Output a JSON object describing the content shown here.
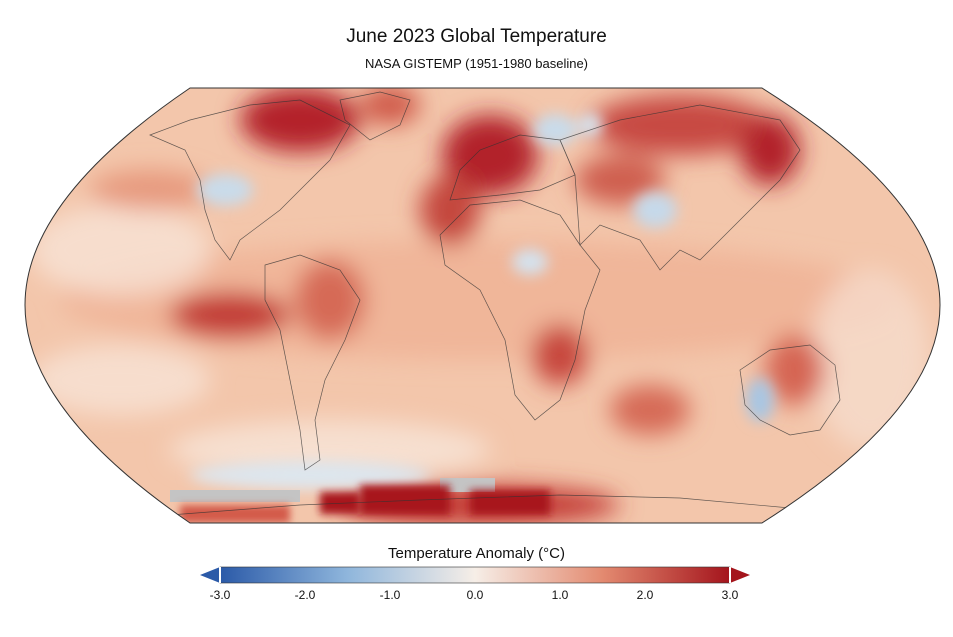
{
  "header": {
    "title": "June 2023 Global Temperature",
    "subtitle": "NASA GISTEMP (1951-1980 baseline)"
  },
  "colorbar": {
    "title": "Temperature Anomaly (°C)",
    "ticks": [
      {
        "value": -3.0,
        "label": "-3.0"
      },
      {
        "value": -2.0,
        "label": "-2.0"
      },
      {
        "value": -1.0,
        "label": "-1.0"
      },
      {
        "value": 0.0,
        "label": "0.0"
      },
      {
        "value": 1.0,
        "label": "1.0"
      },
      {
        "value": 2.0,
        "label": "2.0"
      },
      {
        "value": 3.0,
        "label": "3.0"
      }
    ],
    "range": [
      -3.0,
      3.0
    ],
    "colors": {
      "min": "#2b5aa8",
      "low": "#8fb6dc",
      "mid": "#f6eee7",
      "high": "#e38a70",
      "max": "#a4141c"
    }
  },
  "map": {
    "projection": "Robinson",
    "ocean_base_color": "#f2c2a8",
    "no_data_color": "#c4c4c4"
  }
}
